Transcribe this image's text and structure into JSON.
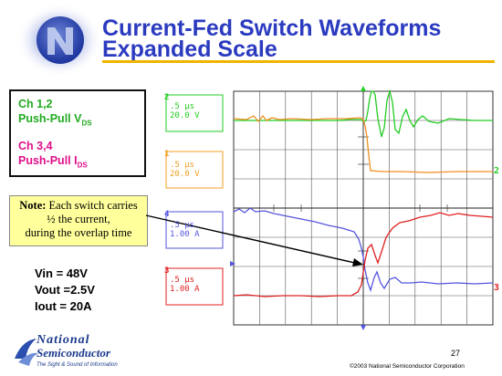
{
  "title": {
    "line1": "Current-Fed Switch Waveforms",
    "line2": "Expanded Scale"
  },
  "legend": {
    "ch12": "Ch 1,2",
    "ch12_desc": "Push-Pull V",
    "ch12_sub": "DS",
    "ch34": "Ch 3,4",
    "ch34_desc": "Push-Pull  I",
    "ch34_sub": "DS"
  },
  "note": {
    "label": "Note:",
    "line1": " Each switch carries",
    "line2": "½ the current,",
    "line3": "during the overlap time"
  },
  "params": {
    "vin": "Vin = 48V",
    "vout": "Vout =2.5V",
    "iout": "Iout = 20A"
  },
  "scope": {
    "channels": [
      {
        "num": "2",
        "time": ".5 µs",
        "scale": "20.0 V",
        "color": "#22cc22"
      },
      {
        "num": "1",
        "time": ".5 µs",
        "scale": "20.0 V",
        "color": "#f0a020"
      },
      {
        "num": "4",
        "time": ".5 µs",
        "scale": "1.00 A",
        "color": "#5555dd"
      },
      {
        "num": "3",
        "time": ".5 µs",
        "scale": "1.00 A",
        "color": "#e02020"
      }
    ],
    "right_markers": [
      "2",
      "3"
    ]
  },
  "footer": {
    "page": "27",
    "copyright": "©2003 National Semiconductor Corporation",
    "company1": "National",
    "company2": "Semiconductor",
    "tagline": "The Sight & Sound of Information"
  },
  "colors": {
    "title": "#2b3bc0",
    "rule": "#f0b400",
    "note_bg": "#ffff9c"
  }
}
